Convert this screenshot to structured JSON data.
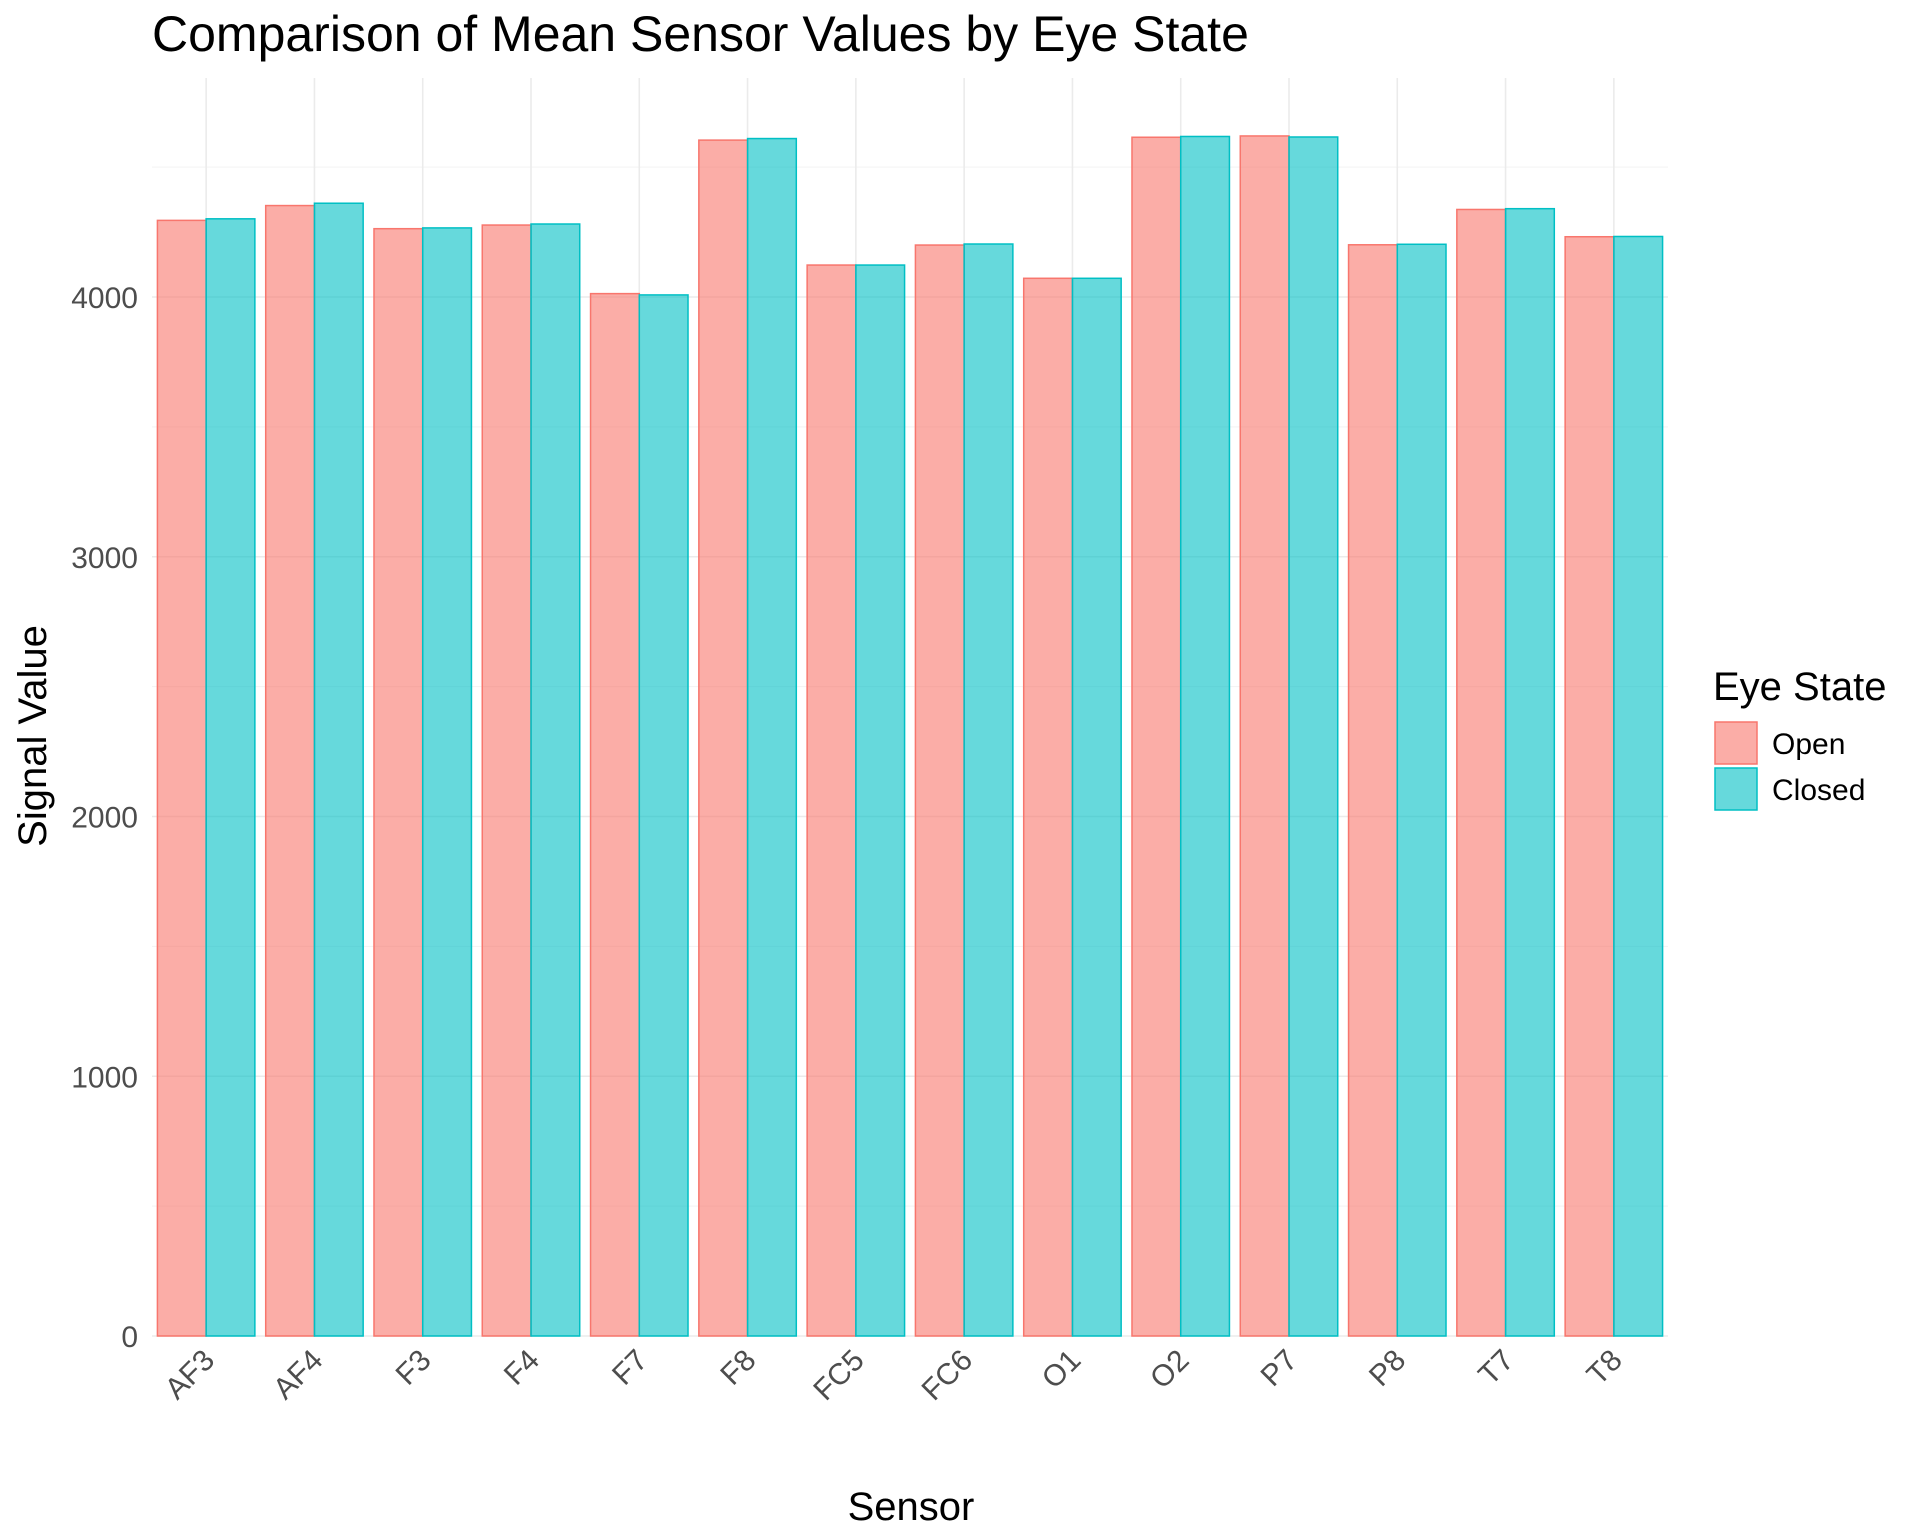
{
  "chart_data": {
    "type": "bar",
    "title": "Comparison of Mean Sensor Values by Eye State",
    "xlabel": "Sensor",
    "ylabel": "Signal Value",
    "categories": [
      "AF3",
      "AF4",
      "F3",
      "F4",
      "F7",
      "F8",
      "FC5",
      "FC6",
      "O1",
      "O2",
      "P7",
      "P8",
      "T7",
      "T8"
    ],
    "series": [
      {
        "name": "Open",
        "fill": "#f8766d",
        "values": [
          4295,
          4352,
          4263,
          4277,
          4013,
          4604,
          4123,
          4200,
          4072,
          4615,
          4620,
          4201,
          4337,
          4232
        ]
      },
      {
        "name": "Closed",
        "fill": "#00bfc4",
        "values": [
          4301,
          4361,
          4266,
          4281,
          4008,
          4610,
          4123,
          4204,
          4072,
          4618,
          4616,
          4203,
          4340,
          4233
        ]
      }
    ],
    "ylim": [
      0,
      4650
    ],
    "yticks": [
      0,
      1000,
      2000,
      3000,
      4000
    ],
    "legend": {
      "title": "Eye State",
      "position": "right"
    },
    "grid": true
  }
}
